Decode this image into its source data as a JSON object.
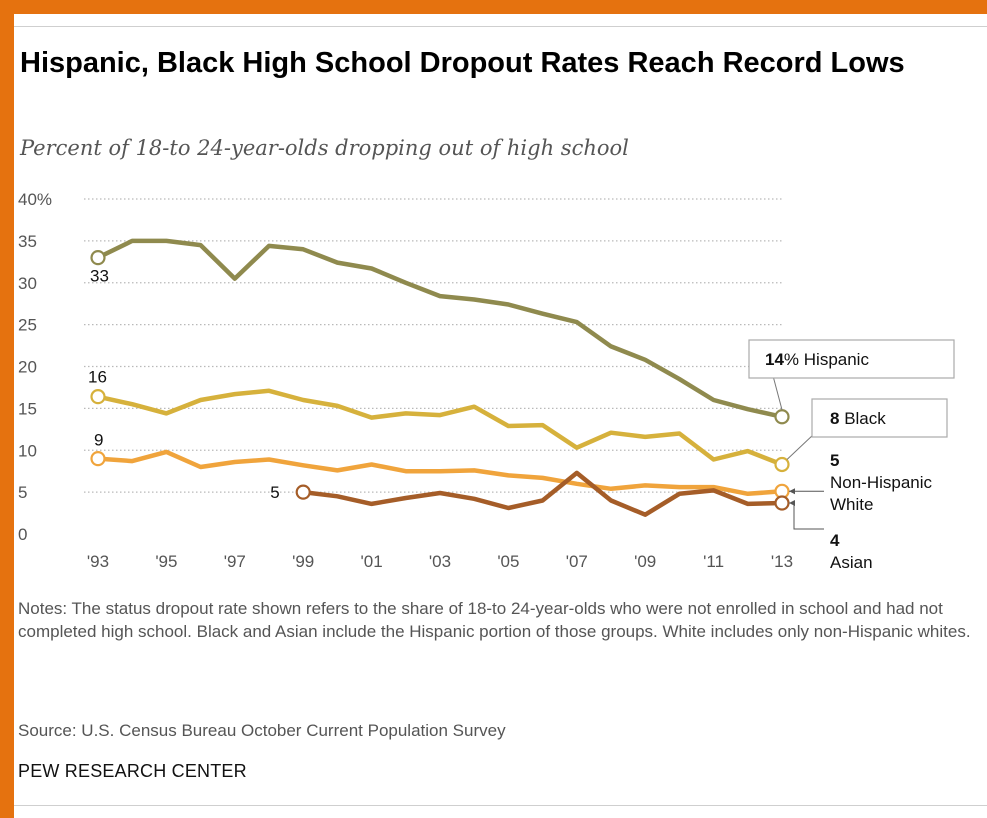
{
  "header": {
    "title": "Hispanic, Black High School Dropout Rates Reach Record Lows",
    "subtitle": "Percent of 18-to 24-year-olds dropping out of high school"
  },
  "footer": {
    "notes": "Notes: The status dropout rate shown refers to the share of 18-to 24-year-olds who were not enrolled in school and had not completed high school.  Black and Asian include the Hispanic portion of those groups.  White includes only non-Hispanic whites.",
    "source": "Source: U.S. Census Bureau October Current Population Survey",
    "brand": "PEW RESEARCH CENTER"
  },
  "colors": {
    "frame": "#e5720f",
    "hispanic": "#8f8a4e",
    "black": "#d6b13c",
    "white": "#f0a43c",
    "asian": "#a55d28",
    "grid": "#b9b9b9"
  },
  "chart_data": {
    "type": "line",
    "title": "Hispanic, Black High School Dropout Rates Reach Record Lows",
    "subtitle": "Percent of 18-to 24-year-olds dropping out of high school",
    "ylim": [
      0,
      40
    ],
    "yticks": [
      "0",
      "5",
      "10",
      "15",
      "20",
      "25",
      "30",
      "35",
      "40%"
    ],
    "xticks": [
      "'93",
      "'95",
      "'97",
      "'99",
      "'01",
      "'03",
      "'05",
      "'07",
      "'09",
      "'11",
      "'13"
    ],
    "xtick_years": [
      1993,
      1995,
      1997,
      1999,
      2001,
      2003,
      2005,
      2007,
      2009,
      2011,
      2013
    ],
    "grid": true,
    "legend": "end-of-line labels",
    "series": [
      {
        "key": "hispanic",
        "years": [
          1993,
          1994,
          1995,
          1996,
          1997,
          1998,
          1999,
          2000,
          2001,
          2002,
          2003,
          2004,
          2005,
          2006,
          2007,
          2008,
          2009,
          2010,
          2011,
          2012,
          2013
        ],
        "values": [
          33,
          35,
          35,
          34.5,
          30.5,
          34.4,
          34,
          32.4,
          31.7,
          30,
          28.4,
          28,
          27.4,
          26.3,
          25.3,
          22.4,
          20.8,
          18.5,
          16,
          14.9,
          14
        ],
        "start_label": "33",
        "end_value": "14",
        "end_text": "% Hispanic"
      },
      {
        "key": "black",
        "years": [
          1993,
          1994,
          1995,
          1996,
          1997,
          1998,
          1999,
          2000,
          2001,
          2002,
          2003,
          2004,
          2005,
          2006,
          2007,
          2008,
          2009,
          2010,
          2011,
          2012,
          2013
        ],
        "values": [
          16.4,
          15.5,
          14.4,
          16,
          16.7,
          17.1,
          16,
          15.3,
          13.9,
          14.4,
          14.2,
          15.2,
          12.9,
          13,
          10.3,
          12.1,
          11.6,
          12,
          8.9,
          9.9,
          8.3
        ],
        "start_label": "16",
        "end_value": "8",
        "end_text": "Black"
      },
      {
        "key": "white",
        "years": [
          1993,
          1994,
          1995,
          1996,
          1997,
          1998,
          1999,
          2000,
          2001,
          2002,
          2003,
          2004,
          2005,
          2006,
          2007,
          2008,
          2009,
          2010,
          2011,
          2012,
          2013
        ],
        "values": [
          9,
          8.7,
          9.8,
          8,
          8.6,
          8.9,
          8.2,
          7.6,
          8.3,
          7.5,
          7.5,
          7.6,
          7,
          6.7,
          6,
          5.4,
          5.8,
          5.6,
          5.6,
          4.8,
          5.1
        ],
        "start_label": "9",
        "end_value": "5",
        "end_text_line1": "Non-Hispanic",
        "end_text_line2": "White"
      },
      {
        "key": "asian",
        "years": [
          1999,
          2000,
          2001,
          2002,
          2003,
          2004,
          2005,
          2006,
          2007,
          2008,
          2009,
          2010,
          2011,
          2012,
          2013
        ],
        "values": [
          5,
          4.5,
          3.6,
          4.3,
          4.9,
          4.2,
          3.1,
          4,
          7.3,
          4,
          2.3,
          4.8,
          5.2,
          3.6,
          3.7
        ],
        "start_label": "5",
        "end_value": "4",
        "end_text": "Asian"
      }
    ]
  }
}
